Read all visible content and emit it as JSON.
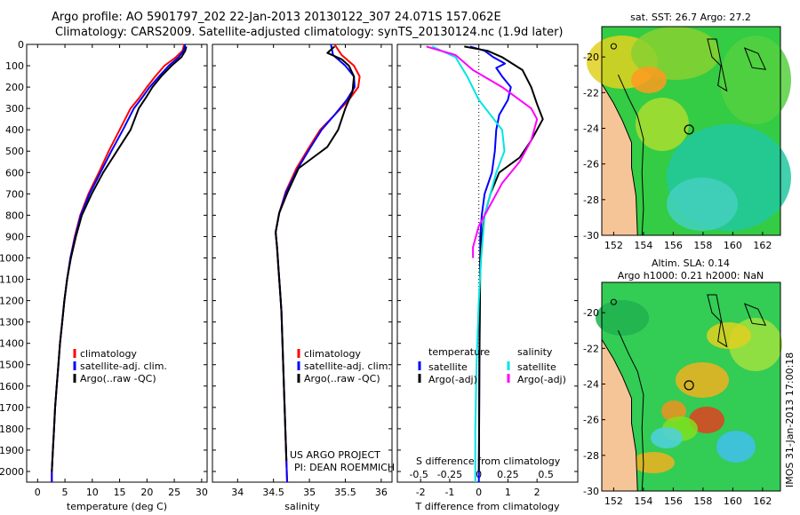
{
  "titles": {
    "line1": "Argo profile: AO 5901797_202 22-Jan-2013 20130122_307 24.071S 157.062E",
    "line2": "Climatology: CARS2009. Satellite-adjusted climatology: synTS_20130124.nc (1.9d later)"
  },
  "chart_data": [
    {
      "type": "line",
      "xlabel": "temperature (deg C)",
      "xlim": [
        -2,
        31
      ],
      "ylim": [
        0,
        2050
      ],
      "y_reversed": true,
      "xticks": [
        0,
        5,
        10,
        15,
        20,
        25,
        30
      ],
      "yticks": [
        0,
        100,
        200,
        300,
        400,
        500,
        600,
        700,
        800,
        900,
        1000,
        1100,
        1200,
        1300,
        1400,
        1500,
        1600,
        1700,
        1800,
        1900,
        2000
      ],
      "legend": [
        "climatology",
        "satellite-adj. clim.",
        "Argo(..raw -QC)"
      ],
      "series": [
        {
          "name": "climatology",
          "color": "#ff0000",
          "points": [
            [
              26.8,
              0
            ],
            [
              26.5,
              30
            ],
            [
              25.3,
              60
            ],
            [
              23.2,
              100
            ],
            [
              21.5,
              150
            ],
            [
              20.0,
              200
            ],
            [
              18.6,
              250
            ],
            [
              17.0,
              300
            ],
            [
              15.0,
              400
            ],
            [
              13.0,
              500
            ],
            [
              11.2,
              600
            ],
            [
              9.3,
              700
            ],
            [
              7.8,
              800
            ],
            [
              6.8,
              900
            ],
            [
              6.0,
              1000
            ],
            [
              5.4,
              1100
            ],
            [
              4.9,
              1200
            ],
            [
              4.5,
              1300
            ],
            [
              4.1,
              1400
            ],
            [
              3.8,
              1500
            ],
            [
              3.5,
              1600
            ],
            [
              3.2,
              1700
            ],
            [
              3.0,
              1800
            ],
            [
              2.8,
              1900
            ],
            [
              2.6,
              2000
            ],
            [
              2.6,
              2050
            ]
          ]
        },
        {
          "name": "satellite-adj. clim.",
          "color": "#0000ff",
          "points": [
            [
              27.0,
              0
            ],
            [
              26.7,
              30
            ],
            [
              25.8,
              60
            ],
            [
              24.0,
              100
            ],
            [
              22.2,
              150
            ],
            [
              20.5,
              200
            ],
            [
              19.1,
              250
            ],
            [
              17.6,
              300
            ],
            [
              15.6,
              400
            ],
            [
              13.5,
              500
            ],
            [
              11.5,
              600
            ],
            [
              9.5,
              700
            ],
            [
              7.9,
              800
            ],
            [
              6.9,
              900
            ],
            [
              6.0,
              1000
            ],
            [
              5.4,
              1100
            ],
            [
              4.9,
              1200
            ],
            [
              4.5,
              1300
            ],
            [
              4.1,
              1400
            ],
            [
              3.8,
              1500
            ],
            [
              3.5,
              1600
            ],
            [
              3.2,
              1700
            ],
            [
              3.0,
              1800
            ],
            [
              2.8,
              1900
            ],
            [
              2.6,
              2000
            ],
            [
              2.6,
              2050
            ]
          ]
        },
        {
          "name": "Argo(..raw -QC)",
          "color": "#000000",
          "points": [
            [
              27.2,
              10
            ],
            [
              27.0,
              30
            ],
            [
              26.3,
              60
            ],
            [
              24.5,
              100
            ],
            [
              22.6,
              150
            ],
            [
              21.0,
              200
            ],
            [
              19.8,
              250
            ],
            [
              18.5,
              300
            ],
            [
              17.0,
              400
            ],
            [
              14.5,
              500
            ],
            [
              12.0,
              600
            ],
            [
              9.9,
              700
            ],
            [
              8.1,
              800
            ],
            [
              7.0,
              900
            ],
            [
              6.1,
              1000
            ],
            [
              5.4,
              1100
            ],
            [
              4.9,
              1200
            ],
            [
              4.5,
              1300
            ],
            [
              4.1,
              1400
            ],
            [
              3.8,
              1500
            ],
            [
              3.5,
              1600
            ],
            [
              3.2,
              1700
            ],
            [
              3.0,
              1800
            ],
            [
              2.8,
              1900
            ],
            [
              2.6,
              2000
            ]
          ]
        }
      ]
    },
    {
      "type": "line",
      "xlabel": "salinity",
      "xlim": [
        33.65,
        36.15
      ],
      "ylim": [
        0,
        2050
      ],
      "y_reversed": true,
      "xticks": [
        34,
        34.5,
        35,
        35.5,
        36
      ],
      "legend": [
        "climatology",
        "satellite-adj. clim.",
        "Argo(..raw -QC)"
      ],
      "annotation": [
        "US ARGO PROJECT",
        "PI: DEAN ROEMMICH"
      ],
      "series": [
        {
          "name": "climatology",
          "color": "#ff0000",
          "points": [
            [
              35.35,
              0
            ],
            [
              35.45,
              50
            ],
            [
              35.62,
              100
            ],
            [
              35.7,
              150
            ],
            [
              35.68,
              200
            ],
            [
              35.55,
              260
            ],
            [
              35.35,
              330
            ],
            [
              35.15,
              400
            ],
            [
              35.0,
              480
            ],
            [
              34.82,
              580
            ],
            [
              34.67,
              690
            ],
            [
              34.58,
              790
            ],
            [
              34.53,
              880
            ],
            [
              34.55,
              950
            ],
            [
              34.57,
              1050
            ],
            [
              34.59,
              1150
            ],
            [
              34.61,
              1250
            ],
            [
              34.62,
              1350
            ],
            [
              34.63,
              1450
            ],
            [
              34.64,
              1550
            ],
            [
              34.65,
              1650
            ],
            [
              34.66,
              1750
            ],
            [
              34.67,
              1850
            ],
            [
              34.68,
              1950
            ],
            [
              34.69,
              2050
            ]
          ]
        },
        {
          "name": "satellite-adj. clim.",
          "color": "#0000ff",
          "points": [
            [
              35.3,
              0
            ],
            [
              35.33,
              50
            ],
            [
              35.5,
              100
            ],
            [
              35.62,
              150
            ],
            [
              35.63,
              200
            ],
            [
              35.52,
              260
            ],
            [
              35.35,
              330
            ],
            [
              35.17,
              400
            ],
            [
              35.02,
              480
            ],
            [
              34.84,
              580
            ],
            [
              34.68,
              690
            ],
            [
              34.58,
              790
            ],
            [
              34.53,
              880
            ],
            [
              34.55,
              950
            ],
            [
              34.57,
              1050
            ],
            [
              34.59,
              1150
            ],
            [
              34.61,
              1250
            ],
            [
              34.62,
              1350
            ],
            [
              34.63,
              1450
            ],
            [
              34.64,
              1550
            ],
            [
              34.65,
              1650
            ],
            [
              34.66,
              1750
            ],
            [
              34.67,
              1850
            ],
            [
              34.68,
              1950
            ],
            [
              34.69,
              2050
            ]
          ]
        },
        {
          "name": "Argo(..raw -QC)",
          "color": "#000000",
          "points": [
            [
              35.35,
              10
            ],
            [
              35.25,
              40
            ],
            [
              35.45,
              70
            ],
            [
              35.55,
              100
            ],
            [
              35.62,
              150
            ],
            [
              35.6,
              220
            ],
            [
              35.5,
              300
            ],
            [
              35.4,
              400
            ],
            [
              35.25,
              480
            ],
            [
              35.05,
              530
            ],
            [
              34.85,
              580
            ],
            [
              34.7,
              690
            ],
            [
              34.58,
              790
            ],
            [
              34.53,
              880
            ],
            [
              34.55,
              950
            ],
            [
              34.57,
              1050
            ],
            [
              34.59,
              1150
            ],
            [
              34.61,
              1250
            ],
            [
              34.62,
              1350
            ],
            [
              34.63,
              1450
            ],
            [
              34.64,
              1550
            ],
            [
              34.65,
              1650
            ],
            [
              34.66,
              1750
            ],
            [
              34.67,
              1850
            ],
            [
              34.68,
              1950
            ]
          ]
        }
      ]
    },
    {
      "type": "line",
      "xlabel": "T difference from climatology",
      "xlabel_top": "S difference from climatology",
      "xlim": [
        -2.8,
        3.4
      ],
      "ylim": [
        0,
        2050
      ],
      "y_reversed": true,
      "xticks": [
        -2,
        -1,
        0,
        1,
        2
      ],
      "xticks_top": [
        "-0.5",
        "-0.25",
        "0",
        "0.25",
        "0.5"
      ],
      "legend_titles": [
        "temperature",
        "salinity"
      ],
      "legend": [
        "satellite",
        "Argo(-adj)",
        "satellite",
        "Argo(-adj)"
      ],
      "series": [
        {
          "name": "satellite",
          "color": "#0000ff",
          "points": [
            [
              -0.3,
              10
            ],
            [
              0.2,
              30
            ],
            [
              0.5,
              60
            ],
            [
              0.9,
              90
            ],
            [
              0.6,
              110
            ],
            [
              0.8,
              150
            ],
            [
              1.1,
              200
            ],
            [
              1.0,
              260
            ],
            [
              0.7,
              330
            ],
            [
              0.6,
              400
            ],
            [
              0.55,
              500
            ],
            [
              0.45,
              600
            ],
            [
              0.2,
              700
            ],
            [
              0.1,
              800
            ],
            [
              0.05,
              900
            ],
            [
              0.05,
              1000
            ],
            [
              0.03,
              1200
            ],
            [
              0.02,
              1500
            ],
            [
              0.01,
              1800
            ],
            [
              0,
              2050
            ]
          ]
        },
        {
          "name": "Argo(-adj)",
          "color": "#000000",
          "points": [
            [
              -0.5,
              10
            ],
            [
              0.3,
              30
            ],
            [
              0.8,
              60
            ],
            [
              1.5,
              120
            ],
            [
              1.8,
              200
            ],
            [
              2.0,
              280
            ],
            [
              2.2,
              350
            ],
            [
              1.8,
              450
            ],
            [
              1.4,
              530
            ],
            [
              0.7,
              600
            ],
            [
              0.4,
              700
            ],
            [
              0.2,
              800
            ],
            [
              0.1,
              900
            ],
            [
              0.05,
              1000
            ],
            [
              0.04,
              1200
            ],
            [
              0.02,
              1500
            ],
            [
              0.01,
              1800
            ],
            [
              0,
              2000
            ]
          ]
        },
        {
          "name": "satellite",
          "color": "#00e5e5",
          "points": [
            [
              -0.4,
              10
            ],
            [
              -0.2,
              60
            ],
            [
              -0.1,
              150
            ],
            [
              0,
              260
            ],
            [
              0.2,
              400
            ],
            [
              0.22,
              500
            ],
            [
              0.15,
              600
            ],
            [
              0.05,
              800
            ],
            [
              0.02,
              1000
            ],
            [
              0,
              1200
            ],
            [
              -0.02,
              1500
            ],
            [
              -0.03,
              1800
            ],
            [
              -0.03,
              2050
            ]
          ]
        },
        {
          "name": "Argo(-adj)",
          "color": "#ff00ff",
          "points": [
            [
              -0.45,
              10
            ],
            [
              -0.2,
              50
            ],
            [
              -0.05,
              120
            ],
            [
              0.2,
              200
            ],
            [
              0.45,
              300
            ],
            [
              0.5,
              350
            ],
            [
              0.45,
              450
            ],
            [
              0.35,
              550
            ],
            [
              0.2,
              650
            ],
            [
              0.1,
              750
            ],
            [
              0,
              850
            ],
            [
              -0.05,
              950
            ],
            [
              -0.05,
              1000
            ]
          ]
        }
      ]
    }
  ],
  "maps": [
    {
      "title": "sat. SST: 26.7 Argo: 27.2",
      "xticks": [
        152,
        154,
        156,
        158,
        160,
        162
      ],
      "yticks": [
        -20,
        -22,
        -24,
        -26,
        -28,
        -30
      ],
      "lon_range": [
        151.2,
        163.2
      ],
      "lat_range": [
        -30,
        -18.3
      ],
      "argo_position": [
        157.06,
        -24.07
      ]
    },
    {
      "title_line1": "Altim. SLA: 0.14",
      "title_line2": "Argo h1000: 0.21 h2000: NaN",
      "xticks": [
        152,
        154,
        156,
        158,
        160,
        162
      ],
      "yticks": [
        -20,
        -22,
        -24,
        -26,
        -28,
        -30
      ],
      "lon_range": [
        151.2,
        163.2
      ],
      "lat_range": [
        -30,
        -18.3
      ],
      "argo_position": [
        157.06,
        -24.07
      ]
    }
  ],
  "credit": "IMOS 31-Jan-2013 17:00:18"
}
